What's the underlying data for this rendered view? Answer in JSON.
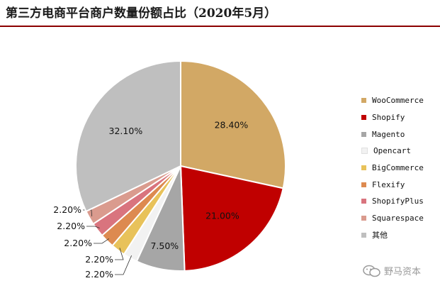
{
  "title": "第三方电商平台商户数量份额占比（2020年5月）",
  "colors": {
    "rule": "#8b0000"
  },
  "chart_data": {
    "type": "pie",
    "title": "第三方电商平台商户数量份额占比（2020年5月）",
    "legend_position": "right",
    "slices": [
      {
        "name": "WooCommerce",
        "value": 28.4,
        "label": "28.40%",
        "color": "#D2A865"
      },
      {
        "name": "Shopify",
        "value": 21.0,
        "label": "21.00%",
        "color": "#C00000"
      },
      {
        "name": "Magento",
        "value": 7.5,
        "label": "7.50%",
        "color": "#A6A6A6"
      },
      {
        "name": "Opencart",
        "value": 2.2,
        "label": "2.20%",
        "color": "#F2F2F2"
      },
      {
        "name": "BigCommerce",
        "value": 2.2,
        "label": "2.20%",
        "color": "#E8C25A"
      },
      {
        "name": "Flexify",
        "value": 2.2,
        "label": "2.20%",
        "color": "#DD8A50"
      },
      {
        "name": "ShopifyPlus",
        "value": 2.2,
        "label": "2.20%",
        "color": "#D9747E"
      },
      {
        "name": "Squarespace",
        "value": 2.2,
        "label": "2.20%",
        "color": "#DA9B8E"
      },
      {
        "name": "其他",
        "value": 32.1,
        "label": "32.10%",
        "color": "#BFBFBF"
      }
    ]
  },
  "watermark": {
    "text": "野马资本"
  }
}
